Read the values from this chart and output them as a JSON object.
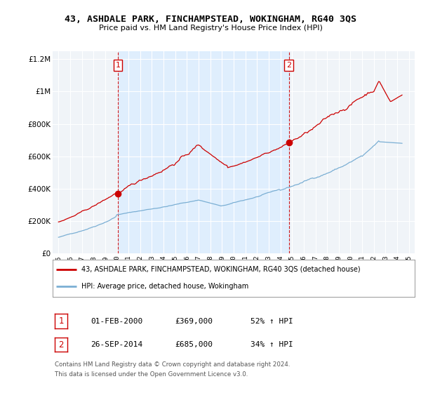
{
  "title": "43, ASHDALE PARK, FINCHAMPSTEAD, WOKINGHAM, RG40 3QS",
  "subtitle": "Price paid vs. HM Land Registry's House Price Index (HPI)",
  "hpi_label": "HPI: Average price, detached house, Wokingham",
  "property_label": "43, ASHDALE PARK, FINCHAMPSTEAD, WOKINGHAM, RG40 3QS (detached house)",
  "footer1": "Contains HM Land Registry data © Crown copyright and database right 2024.",
  "footer2": "This data is licensed under the Open Government Licence v3.0.",
  "transaction1": {
    "num": "1",
    "date": "01-FEB-2000",
    "price": "£369,000",
    "hpi": "52% ↑ HPI"
  },
  "transaction2": {
    "num": "2",
    "date": "26-SEP-2014",
    "price": "£685,000",
    "hpi": "34% ↑ HPI"
  },
  "vline1_year": 2000.08,
  "vline2_year": 2014.73,
  "property_color": "#cc0000",
  "hpi_color": "#7bafd4",
  "vline_color": "#cc0000",
  "shade_color": "#ddeeff",
  "background_color": "#f0f4f8",
  "ylim": [
    0,
    1250000
  ],
  "xlim": [
    1994.5,
    2025.5
  ],
  "yticks": [
    0,
    200000,
    400000,
    600000,
    800000,
    1000000,
    1200000
  ],
  "ytick_labels": [
    "£0",
    "£200K",
    "£400K",
    "£600K",
    "£800K",
    "£1M",
    "£1.2M"
  ],
  "xticks": [
    1995,
    1996,
    1997,
    1998,
    1999,
    2000,
    2001,
    2002,
    2003,
    2004,
    2005,
    2006,
    2007,
    2008,
    2009,
    2010,
    2011,
    2012,
    2013,
    2014,
    2015,
    2016,
    2017,
    2018,
    2019,
    2020,
    2021,
    2022,
    2023,
    2024,
    2025
  ]
}
